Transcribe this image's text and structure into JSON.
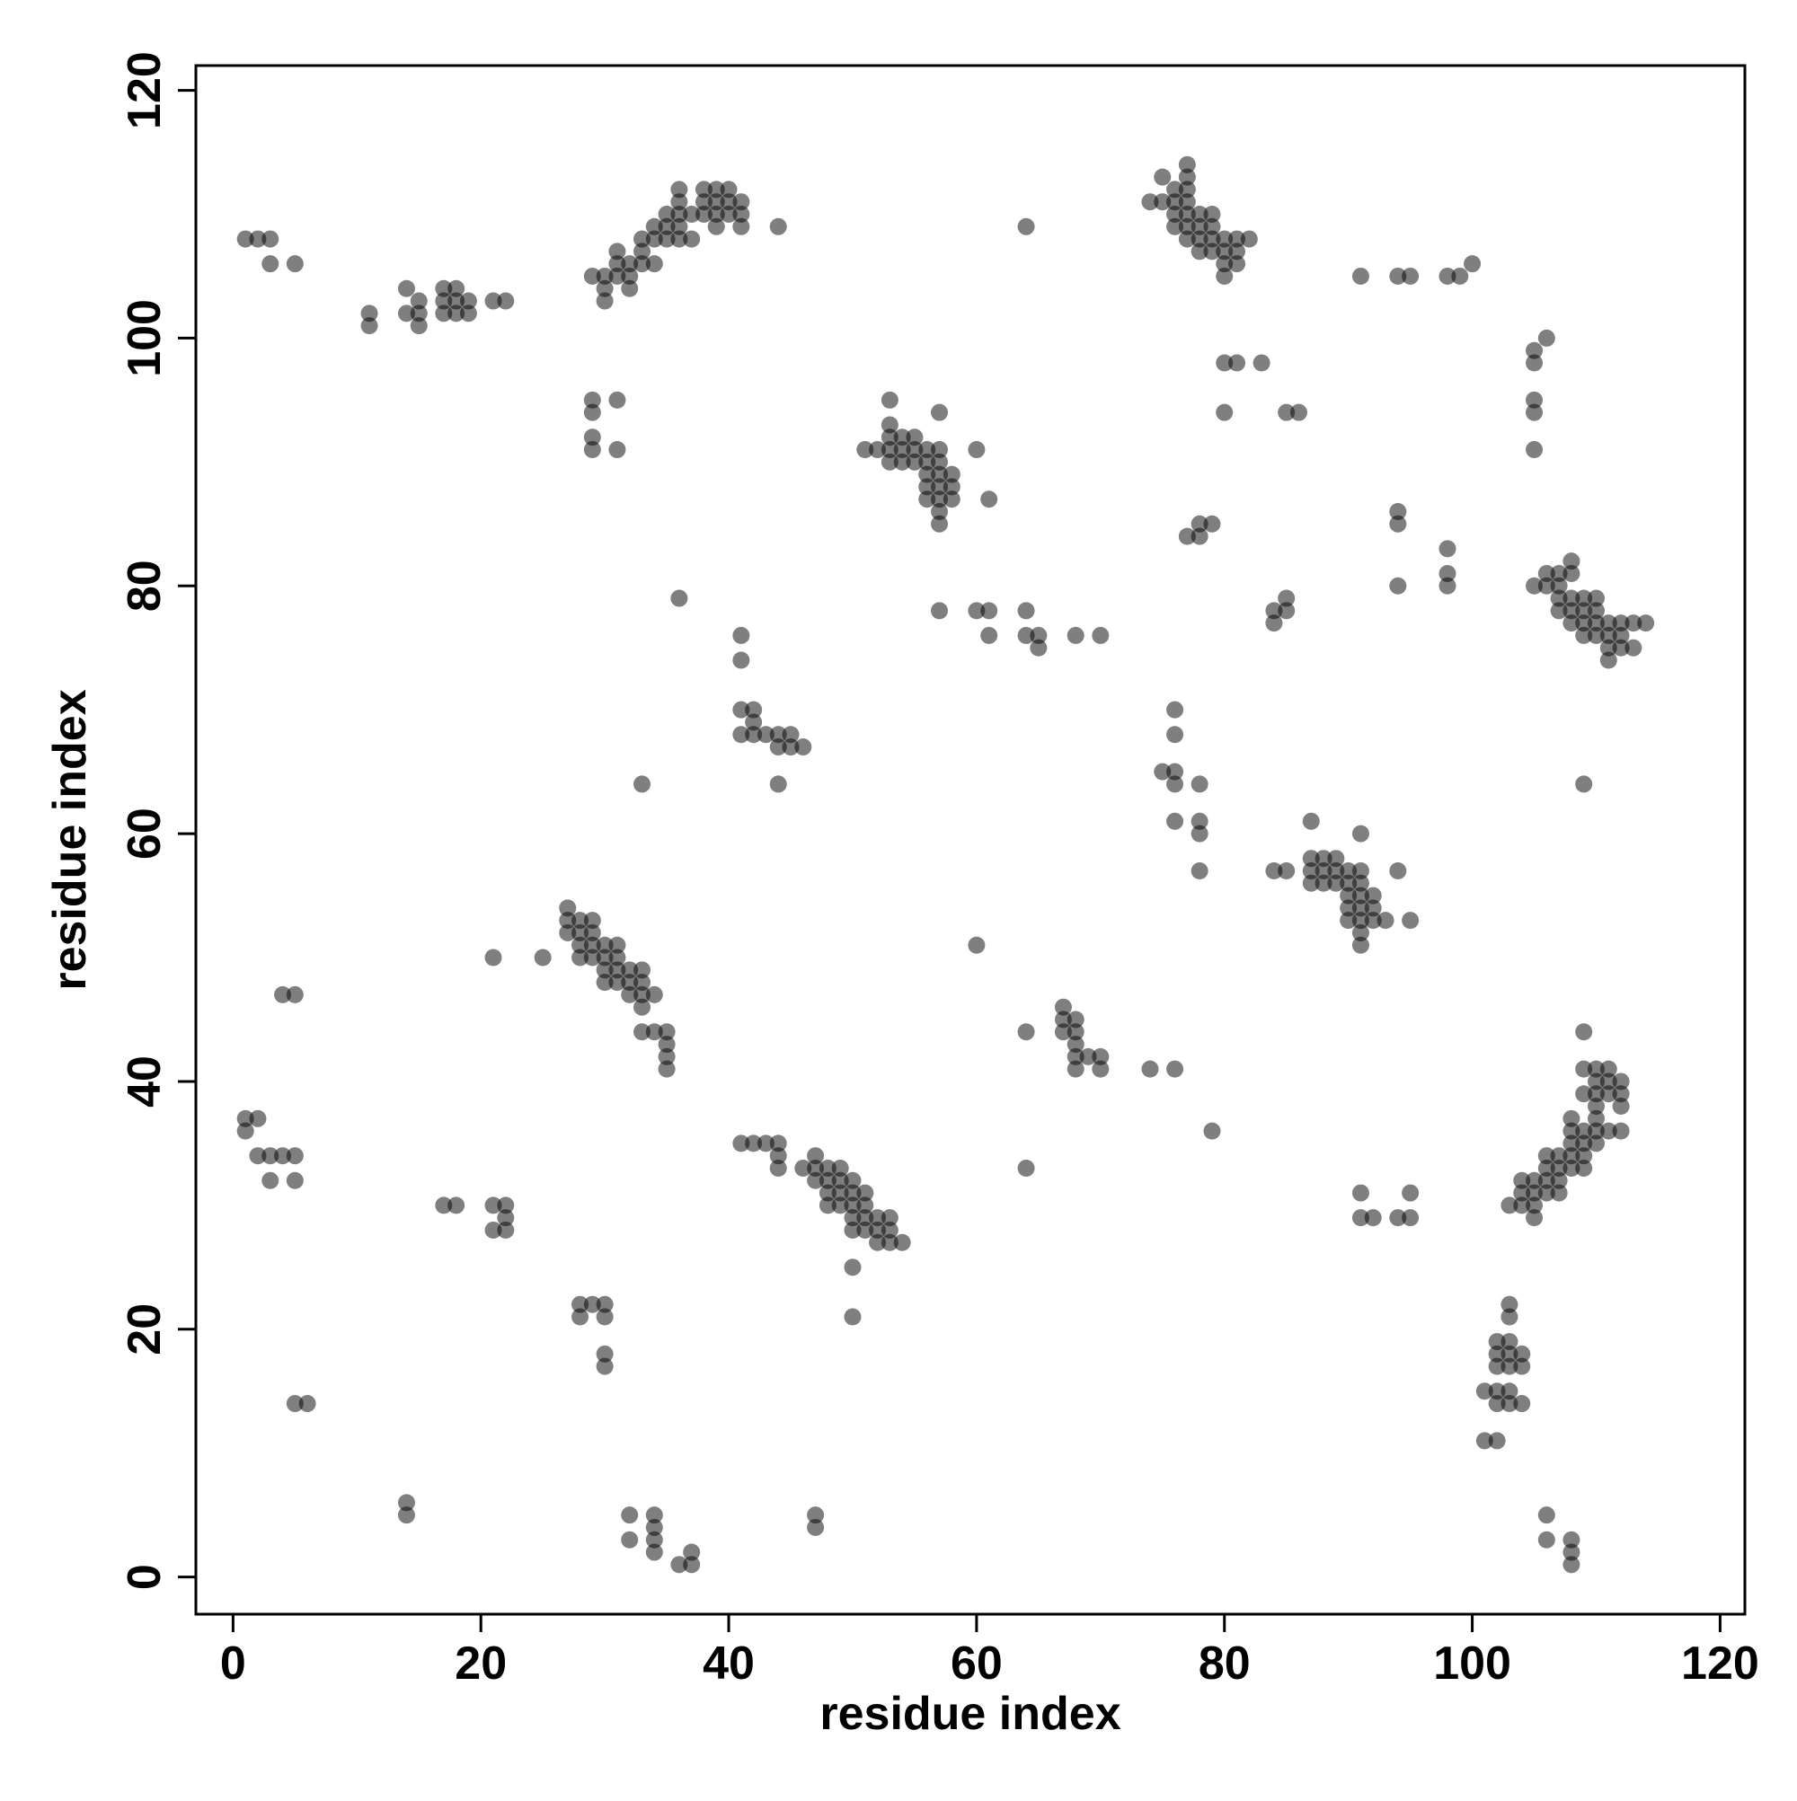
{
  "chart_data": {
    "type": "scatter",
    "title": "",
    "xlabel": "residue index",
    "ylabel": "residue index",
    "xlim": [
      -3,
      122
    ],
    "ylim": [
      -3,
      122
    ],
    "xticks": [
      0,
      20,
      40,
      60,
      80,
      100,
      120
    ],
    "yticks": [
      0,
      20,
      40,
      60,
      80,
      100,
      120
    ],
    "grid": false,
    "legend": "none",
    "point_color": "#000000",
    "note_opacity": "points are semi-transparent grey; darker where contacts overlap",
    "points": [
      [
        1,
        108
      ],
      [
        2,
        108
      ],
      [
        3,
        108
      ],
      [
        3,
        106
      ],
      [
        5,
        106
      ],
      [
        11,
        102
      ],
      [
        11,
        101
      ],
      [
        14,
        104
      ],
      [
        14,
        102
      ],
      [
        15,
        103
      ],
      [
        15,
        102
      ],
      [
        15,
        101
      ],
      [
        17,
        104
      ],
      [
        17,
        103
      ],
      [
        17,
        102
      ],
      [
        18,
        104
      ],
      [
        18,
        103
      ],
      [
        18,
        102
      ],
      [
        19,
        103
      ],
      [
        19,
        102
      ],
      [
        21,
        103
      ],
      [
        22,
        103
      ],
      [
        29,
        105
      ],
      [
        30,
        105
      ],
      [
        30,
        104
      ],
      [
        30,
        103
      ],
      [
        31,
        107
      ],
      [
        31,
        106
      ],
      [
        31,
        105
      ],
      [
        32,
        106
      ],
      [
        32,
        105
      ],
      [
        32,
        104
      ],
      [
        33,
        108
      ],
      [
        33,
        107
      ],
      [
        33,
        106
      ],
      [
        34,
        109
      ],
      [
        34,
        108
      ],
      [
        34,
        106
      ],
      [
        35,
        110
      ],
      [
        35,
        109
      ],
      [
        35,
        108
      ],
      [
        36,
        112
      ],
      [
        36,
        111
      ],
      [
        36,
        110
      ],
      [
        36,
        109
      ],
      [
        36,
        108
      ],
      [
        37,
        108
      ],
      [
        37,
        110
      ],
      [
        38,
        112
      ],
      [
        38,
        111
      ],
      [
        38,
        110
      ],
      [
        39,
        112
      ],
      [
        39,
        111
      ],
      [
        39,
        110
      ],
      [
        39,
        109
      ],
      [
        40,
        112
      ],
      [
        40,
        111
      ],
      [
        40,
        110
      ],
      [
        41,
        111
      ],
      [
        41,
        110
      ],
      [
        41,
        109
      ],
      [
        44,
        109
      ],
      [
        29,
        95
      ],
      [
        29,
        94
      ],
      [
        29,
        92
      ],
      [
        29,
        91
      ],
      [
        31,
        95
      ],
      [
        31,
        91
      ],
      [
        53,
        95
      ],
      [
        53,
        93
      ],
      [
        53,
        92
      ],
      [
        53,
        91
      ],
      [
        53,
        90
      ],
      [
        51,
        91
      ],
      [
        52,
        91
      ],
      [
        54,
        92
      ],
      [
        54,
        91
      ],
      [
        54,
        90
      ],
      [
        55,
        92
      ],
      [
        55,
        91
      ],
      [
        55,
        90
      ],
      [
        56,
        91
      ],
      [
        56,
        90
      ],
      [
        56,
        89
      ],
      [
        56,
        88
      ],
      [
        56,
        87
      ],
      [
        57,
        94
      ],
      [
        57,
        91
      ],
      [
        57,
        90
      ],
      [
        57,
        89
      ],
      [
        57,
        88
      ],
      [
        57,
        87
      ],
      [
        57,
        86
      ],
      [
        57,
        85
      ],
      [
        58,
        89
      ],
      [
        58,
        88
      ],
      [
        58,
        87
      ],
      [
        60,
        91
      ],
      [
        61,
        87
      ],
      [
        36,
        79
      ],
      [
        57,
        78
      ],
      [
        60,
        78
      ],
      [
        61,
        78
      ],
      [
        61,
        76
      ],
      [
        64,
        109
      ],
      [
        64,
        78
      ],
      [
        64,
        76
      ],
      [
        65,
        76
      ],
      [
        65,
        75
      ],
      [
        68,
        76
      ],
      [
        70,
        76
      ],
      [
        41,
        76
      ],
      [
        41,
        74
      ],
      [
        41,
        70
      ],
      [
        41,
        68
      ],
      [
        42,
        70
      ],
      [
        42,
        69
      ],
      [
        42,
        68
      ],
      [
        43,
        68
      ],
      [
        44,
        68
      ],
      [
        44,
        67
      ],
      [
        45,
        68
      ],
      [
        45,
        67
      ],
      [
        46,
        67
      ],
      [
        44,
        64
      ],
      [
        33,
        64
      ],
      [
        75,
        111
      ],
      [
        74,
        111
      ],
      [
        75,
        113
      ],
      [
        76,
        112
      ],
      [
        76,
        111
      ],
      [
        76,
        110
      ],
      [
        76,
        109
      ],
      [
        77,
        114
      ],
      [
        77,
        113
      ],
      [
        77,
        112
      ],
      [
        77,
        111
      ],
      [
        77,
        110
      ],
      [
        77,
        109
      ],
      [
        77,
        108
      ],
      [
        78,
        110
      ],
      [
        78,
        109
      ],
      [
        78,
        108
      ],
      [
        78,
        107
      ],
      [
        79,
        110
      ],
      [
        79,
        109
      ],
      [
        79,
        108
      ],
      [
        79,
        107
      ],
      [
        80,
        108
      ],
      [
        80,
        107
      ],
      [
        80,
        106
      ],
      [
        80,
        105
      ],
      [
        81,
        108
      ],
      [
        81,
        107
      ],
      [
        81,
        106
      ],
      [
        82,
        108
      ],
      [
        80,
        98
      ],
      [
        81,
        98
      ],
      [
        83,
        98
      ],
      [
        80,
        94
      ],
      [
        85,
        94
      ],
      [
        86,
        94
      ],
      [
        77,
        84
      ],
      [
        78,
        85
      ],
      [
        78,
        84
      ],
      [
        79,
        85
      ],
      [
        76,
        70
      ],
      [
        76,
        68
      ],
      [
        75,
        65
      ],
      [
        76,
        65
      ],
      [
        76,
        64
      ],
      [
        78,
        64
      ],
      [
        76,
        61
      ],
      [
        78,
        61
      ],
      [
        78,
        60
      ],
      [
        78,
        57
      ],
      [
        84,
        78
      ],
      [
        84,
        77
      ],
      [
        85,
        79
      ],
      [
        85,
        78
      ],
      [
        84,
        57
      ],
      [
        85,
        57
      ],
      [
        87,
        61
      ],
      [
        87,
        58
      ],
      [
        87,
        57
      ],
      [
        87,
        56
      ],
      [
        88,
        58
      ],
      [
        88,
        57
      ],
      [
        88,
        56
      ],
      [
        89,
        58
      ],
      [
        89,
        57
      ],
      [
        89,
        56
      ],
      [
        90,
        57
      ],
      [
        90,
        56
      ],
      [
        90,
        55
      ],
      [
        90,
        54
      ],
      [
        90,
        53
      ],
      [
        91,
        60
      ],
      [
        91,
        57
      ],
      [
        91,
        56
      ],
      [
        91,
        55
      ],
      [
        91,
        54
      ],
      [
        91,
        53
      ],
      [
        91,
        52
      ],
      [
        91,
        51
      ],
      [
        92,
        55
      ],
      [
        92,
        54
      ],
      [
        92,
        53
      ],
      [
        93,
        53
      ],
      [
        94,
        57
      ],
      [
        95,
        53
      ],
      [
        94,
        86
      ],
      [
        94,
        85
      ],
      [
        94,
        80
      ],
      [
        98,
        83
      ],
      [
        98,
        81
      ],
      [
        98,
        80
      ],
      [
        91,
        105
      ],
      [
        94,
        105
      ],
      [
        95,
        105
      ],
      [
        98,
        105
      ],
      [
        99,
        105
      ],
      [
        100,
        106
      ],
      [
        105,
        99
      ],
      [
        105,
        98
      ],
      [
        106,
        100
      ],
      [
        105,
        95
      ],
      [
        105,
        94
      ],
      [
        105,
        91
      ],
      [
        105,
        80
      ],
      [
        106,
        81
      ],
      [
        106,
        80
      ],
      [
        107,
        81
      ],
      [
        107,
        80
      ],
      [
        107,
        79
      ],
      [
        107,
        78
      ],
      [
        108,
        82
      ],
      [
        108,
        81
      ],
      [
        108,
        79
      ],
      [
        108,
        78
      ],
      [
        108,
        77
      ],
      [
        109,
        79
      ],
      [
        109,
        78
      ],
      [
        109,
        77
      ],
      [
        109,
        76
      ],
      [
        110,
        79
      ],
      [
        110,
        78
      ],
      [
        110,
        77
      ],
      [
        110,
        76
      ],
      [
        111,
        77
      ],
      [
        111,
        76
      ],
      [
        111,
        75
      ],
      [
        111,
        74
      ],
      [
        112,
        77
      ],
      [
        112,
        76
      ],
      [
        112,
        75
      ],
      [
        113,
        77
      ],
      [
        113,
        75
      ],
      [
        114,
        77
      ],
      [
        109,
        64
      ],
      [
        1,
        37
      ],
      [
        2,
        37
      ],
      [
        1,
        36
      ],
      [
        2,
        34
      ],
      [
        3,
        34
      ],
      [
        4,
        34
      ],
      [
        5,
        34
      ],
      [
        3,
        32
      ],
      [
        5,
        32
      ],
      [
        4,
        47
      ],
      [
        5,
        47
      ],
      [
        5,
        14
      ],
      [
        6,
        14
      ],
      [
        14,
        6
      ],
      [
        14,
        5
      ],
      [
        17,
        30
      ],
      [
        18,
        30
      ],
      [
        21,
        30
      ],
      [
        22,
        30
      ],
      [
        21,
        28
      ],
      [
        22,
        29
      ],
      [
        22,
        28
      ],
      [
        21,
        50
      ],
      [
        25,
        50
      ],
      [
        27,
        54
      ],
      [
        27,
        53
      ],
      [
        27,
        52
      ],
      [
        28,
        53
      ],
      [
        28,
        52
      ],
      [
        28,
        51
      ],
      [
        28,
        50
      ],
      [
        29,
        53
      ],
      [
        29,
        52
      ],
      [
        29,
        51
      ],
      [
        29,
        50
      ],
      [
        30,
        51
      ],
      [
        30,
        50
      ],
      [
        30,
        49
      ],
      [
        30,
        48
      ],
      [
        31,
        51
      ],
      [
        31,
        50
      ],
      [
        31,
        49
      ],
      [
        31,
        48
      ],
      [
        32,
        49
      ],
      [
        32,
        48
      ],
      [
        32,
        47
      ],
      [
        33,
        49
      ],
      [
        33,
        48
      ],
      [
        33,
        47
      ],
      [
        33,
        46
      ],
      [
        33,
        44
      ],
      [
        34,
        47
      ],
      [
        34,
        44
      ],
      [
        35,
        44
      ],
      [
        35,
        43
      ],
      [
        35,
        42
      ],
      [
        35,
        41
      ],
      [
        28,
        22
      ],
      [
        28,
        21
      ],
      [
        29,
        22
      ],
      [
        30,
        22
      ],
      [
        30,
        21
      ],
      [
        30,
        18
      ],
      [
        30,
        17
      ],
      [
        32,
        5
      ],
      [
        32,
        3
      ],
      [
        34,
        5
      ],
      [
        34,
        4
      ],
      [
        34,
        3
      ],
      [
        34,
        2
      ],
      [
        36,
        1
      ],
      [
        37,
        2
      ],
      [
        37,
        1
      ],
      [
        47,
        5
      ],
      [
        47,
        4
      ],
      [
        41,
        35
      ],
      [
        42,
        35
      ],
      [
        43,
        35
      ],
      [
        44,
        35
      ],
      [
        44,
        34
      ],
      [
        44,
        33
      ],
      [
        46,
        33
      ],
      [
        47,
        34
      ],
      [
        47,
        33
      ],
      [
        47,
        32
      ],
      [
        48,
        33
      ],
      [
        48,
        32
      ],
      [
        48,
        31
      ],
      [
        48,
        30
      ],
      [
        49,
        33
      ],
      [
        49,
        32
      ],
      [
        49,
        31
      ],
      [
        49,
        30
      ],
      [
        50,
        32
      ],
      [
        50,
        31
      ],
      [
        50,
        30
      ],
      [
        50,
        29
      ],
      [
        50,
        28
      ],
      [
        51,
        31
      ],
      [
        51,
        30
      ],
      [
        51,
        29
      ],
      [
        51,
        28
      ],
      [
        52,
        29
      ],
      [
        52,
        28
      ],
      [
        52,
        27
      ],
      [
        53,
        29
      ],
      [
        53,
        28
      ],
      [
        53,
        27
      ],
      [
        54,
        27
      ],
      [
        50,
        25
      ],
      [
        50,
        21
      ],
      [
        60,
        51
      ],
      [
        64,
        44
      ],
      [
        64,
        33
      ],
      [
        67,
        46
      ],
      [
        67,
        45
      ],
      [
        67,
        44
      ],
      [
        68,
        45
      ],
      [
        68,
        44
      ],
      [
        68,
        43
      ],
      [
        68,
        42
      ],
      [
        68,
        41
      ],
      [
        69,
        42
      ],
      [
        70,
        42
      ],
      [
        70,
        41
      ],
      [
        74,
        41
      ],
      [
        76,
        41
      ],
      [
        79,
        36
      ],
      [
        91,
        31
      ],
      [
        91,
        29
      ],
      [
        92,
        29
      ],
      [
        94,
        29
      ],
      [
        95,
        31
      ],
      [
        95,
        29
      ],
      [
        103,
        30
      ],
      [
        104,
        32
      ],
      [
        104,
        31
      ],
      [
        104,
        30
      ],
      [
        105,
        32
      ],
      [
        105,
        31
      ],
      [
        105,
        30
      ],
      [
        105,
        29
      ],
      [
        106,
        34
      ],
      [
        106,
        33
      ],
      [
        106,
        32
      ],
      [
        106,
        31
      ],
      [
        107,
        34
      ],
      [
        107,
        33
      ],
      [
        107,
        32
      ],
      [
        107,
        31
      ],
      [
        108,
        37
      ],
      [
        108,
        36
      ],
      [
        108,
        35
      ],
      [
        108,
        34
      ],
      [
        108,
        33
      ],
      [
        109,
        44
      ],
      [
        109,
        41
      ],
      [
        109,
        39
      ],
      [
        109,
        36
      ],
      [
        109,
        35
      ],
      [
        109,
        34
      ],
      [
        109,
        33
      ],
      [
        110,
        41
      ],
      [
        110,
        40
      ],
      [
        110,
        39
      ],
      [
        110,
        38
      ],
      [
        110,
        37
      ],
      [
        110,
        36
      ],
      [
        110,
        35
      ],
      [
        111,
        41
      ],
      [
        111,
        40
      ],
      [
        111,
        39
      ],
      [
        111,
        36
      ],
      [
        112,
        40
      ],
      [
        112,
        39
      ],
      [
        112,
        38
      ],
      [
        112,
        36
      ],
      [
        101,
        15
      ],
      [
        101,
        11
      ],
      [
        102,
        19
      ],
      [
        102,
        18
      ],
      [
        102,
        17
      ],
      [
        102,
        15
      ],
      [
        102,
        14
      ],
      [
        102,
        11
      ],
      [
        103,
        22
      ],
      [
        103,
        21
      ],
      [
        103,
        19
      ],
      [
        103,
        18
      ],
      [
        103,
        17
      ],
      [
        103,
        15
      ],
      [
        103,
        14
      ],
      [
        104,
        18
      ],
      [
        104,
        17
      ],
      [
        104,
        14
      ],
      [
        106,
        5
      ],
      [
        106,
        3
      ],
      [
        108,
        3
      ],
      [
        108,
        2
      ],
      [
        108,
        1
      ]
    ]
  }
}
